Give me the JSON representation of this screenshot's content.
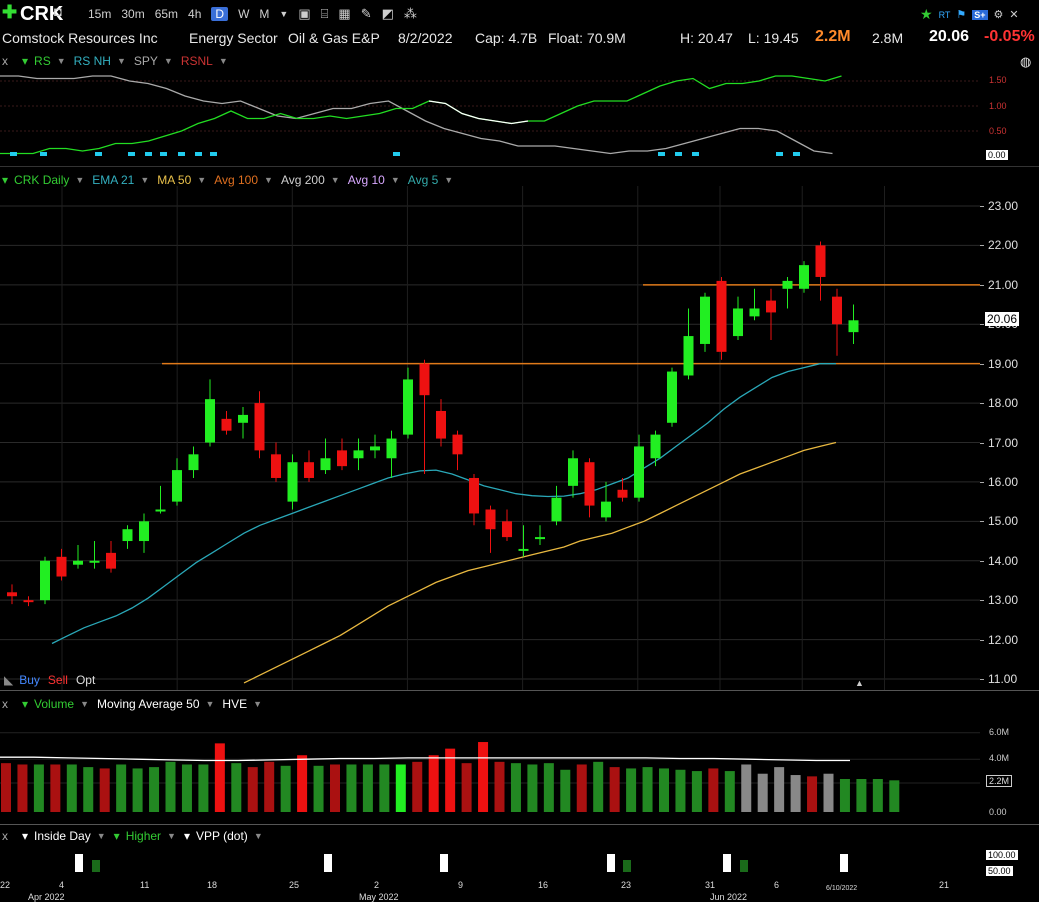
{
  "toolbar": {
    "ticker": "CRK",
    "timeframes": [
      "15m",
      "30m",
      "65m",
      "4h",
      "D",
      "W",
      "M"
    ],
    "active_timeframe": "D",
    "right_label_rt": "RT",
    "right_label_s": "S+"
  },
  "info": {
    "company": "Comstock Resources Inc",
    "sector": "Energy Sector",
    "industry": "Oil & Gas E&P",
    "date": "8/2/2022",
    "cap": "Cap: 4.7B",
    "float": "Float: 70.9M",
    "high": "H: 20.47",
    "low": "L: 19.45",
    "volume": "2.2M",
    "avg_volume": "2.8M",
    "price": "20.06",
    "change": "-0.05%"
  },
  "rs_panel": {
    "close_label": "x",
    "items": [
      "RS",
      "RS NH",
      "SPY",
      "RSNL"
    ],
    "y_ticks": [
      "1.50",
      "1.00",
      "0.50"
    ],
    "value_badge": "0.00"
  },
  "price_panel": {
    "legend": [
      "CRK Daily",
      "EMA 21",
      "MA 50",
      "Avg 100",
      "Avg 200",
      "Avg 10",
      "Avg 5"
    ],
    "legend_colors": [
      "#33cc33",
      "#33b0c0",
      "#e8c04a",
      "#e07020",
      "#cfcfcf",
      "#d8a8ff",
      "#33aaaa"
    ],
    "y_ticks": [
      "23.00",
      "22.00",
      "21.00",
      "20.00",
      "19.00",
      "18.00",
      "17.00",
      "16.00",
      "15.00",
      "14.00",
      "13.00",
      "12.00",
      "11.00"
    ],
    "price_badge": "20.06",
    "buy_label": "Buy",
    "sell_label": "Sell",
    "opt_label": "Opt"
  },
  "volume_panel": {
    "close_label": "x",
    "items": [
      "Volume",
      "Moving Average 50",
      "HVE"
    ],
    "y_ticks": [
      "6.0M",
      "4.0M",
      "2.2M",
      "0.00"
    ],
    "value_badge": "2.2M"
  },
  "inside_panel": {
    "close_label": "x",
    "items": [
      "Inside Day",
      "Higher",
      "VPP (dot)"
    ],
    "badges": [
      "100.00",
      "50.00"
    ]
  },
  "x_axis": {
    "labels": [
      "22",
      "Apr 2022",
      "4",
      "11",
      "18",
      "25",
      "2",
      "May 2022",
      "9",
      "16",
      "23",
      "31",
      "Jun 2022",
      "6",
      "6/10/2022",
      "21"
    ]
  },
  "chart_data": {
    "type": "candlestick",
    "ylim": [
      10.9,
      23.3
    ],
    "horizontal_lines": [
      21.0,
      19.0
    ],
    "candles": [
      {
        "o": 13.2,
        "c": 13.1,
        "h": 13.4,
        "l": 12.9
      },
      {
        "o": 13.0,
        "c": 12.95,
        "h": 13.1,
        "l": 12.85
      },
      {
        "o": 13.0,
        "c": 14.0,
        "h": 14.1,
        "l": 12.9
      },
      {
        "o": 14.1,
        "c": 13.6,
        "h": 14.3,
        "l": 13.5
      },
      {
        "o": 13.9,
        "c": 14.0,
        "h": 14.4,
        "l": 13.8
      },
      {
        "o": 14.0,
        "c": 14.0,
        "h": 14.5,
        "l": 13.8
      },
      {
        "o": 14.2,
        "c": 13.8,
        "h": 14.5,
        "l": 13.7
      },
      {
        "o": 14.5,
        "c": 14.8,
        "h": 14.9,
        "l": 14.3
      },
      {
        "o": 14.5,
        "c": 15.0,
        "h": 15.2,
        "l": 14.2
      },
      {
        "o": 15.3,
        "c": 15.3,
        "h": 15.9,
        "l": 15.2
      },
      {
        "o": 15.5,
        "c": 16.3,
        "h": 16.6,
        "l": 15.4
      },
      {
        "o": 16.3,
        "c": 16.7,
        "h": 16.9,
        "l": 16.1
      },
      {
        "o": 17.0,
        "c": 18.1,
        "h": 18.6,
        "l": 16.9
      },
      {
        "o": 17.6,
        "c": 17.3,
        "h": 17.8,
        "l": 17.2
      },
      {
        "o": 17.5,
        "c": 17.7,
        "h": 17.9,
        "l": 17.1
      },
      {
        "o": 18.0,
        "c": 16.8,
        "h": 18.3,
        "l": 16.6
      },
      {
        "o": 16.7,
        "c": 16.1,
        "h": 17.0,
        "l": 16.0
      },
      {
        "o": 15.5,
        "c": 16.5,
        "h": 16.7,
        "l": 15.3
      },
      {
        "o": 16.5,
        "c": 16.1,
        "h": 16.8,
        "l": 16.0
      },
      {
        "o": 16.3,
        "c": 16.6,
        "h": 17.1,
        "l": 16.2
      },
      {
        "o": 16.8,
        "c": 16.4,
        "h": 17.1,
        "l": 16.3
      },
      {
        "o": 16.6,
        "c": 16.8,
        "h": 17.1,
        "l": 16.3
      },
      {
        "o": 16.8,
        "c": 16.9,
        "h": 17.2,
        "l": 16.6
      },
      {
        "o": 16.6,
        "c": 17.1,
        "h": 17.3,
        "l": 16.1
      },
      {
        "o": 17.2,
        "c": 18.6,
        "h": 18.9,
        "l": 17.1
      },
      {
        "o": 19.0,
        "c": 18.2,
        "h": 19.1,
        "l": 16.2
      },
      {
        "o": 17.8,
        "c": 17.1,
        "h": 18.1,
        "l": 16.9
      },
      {
        "o": 17.2,
        "c": 16.7,
        "h": 17.3,
        "l": 16.3
      },
      {
        "o": 16.1,
        "c": 15.2,
        "h": 16.2,
        "l": 14.9
      },
      {
        "o": 15.3,
        "c": 14.8,
        "h": 15.4,
        "l": 14.2
      },
      {
        "o": 15.0,
        "c": 14.6,
        "h": 15.3,
        "l": 14.5
      },
      {
        "o": 14.3,
        "c": 14.3,
        "h": 14.9,
        "l": 14.1
      },
      {
        "o": 14.6,
        "c": 14.6,
        "h": 14.9,
        "l": 14.4
      },
      {
        "o": 15.0,
        "c": 15.6,
        "h": 15.9,
        "l": 14.9
      },
      {
        "o": 15.9,
        "c": 16.6,
        "h": 16.8,
        "l": 15.6
      },
      {
        "o": 16.5,
        "c": 15.4,
        "h": 16.6,
        "l": 15.1
      },
      {
        "o": 15.1,
        "c": 15.5,
        "h": 16.0,
        "l": 15.0
      },
      {
        "o": 15.8,
        "c": 15.6,
        "h": 16.1,
        "l": 15.5
      },
      {
        "o": 15.6,
        "c": 16.9,
        "h": 17.2,
        "l": 15.5
      },
      {
        "o": 16.6,
        "c": 17.2,
        "h": 17.3,
        "l": 16.4
      },
      {
        "o": 17.5,
        "c": 18.8,
        "h": 18.9,
        "l": 17.4
      },
      {
        "o": 18.7,
        "c": 19.7,
        "h": 20.4,
        "l": 18.6
      },
      {
        "o": 19.5,
        "c": 20.7,
        "h": 20.8,
        "l": 19.3
      },
      {
        "o": 21.1,
        "c": 19.3,
        "h": 21.2,
        "l": 19.1
      },
      {
        "o": 19.7,
        "c": 20.4,
        "h": 20.7,
        "l": 19.6
      },
      {
        "o": 20.2,
        "c": 20.4,
        "h": 20.9,
        "l": 20.1
      },
      {
        "o": 20.6,
        "c": 20.3,
        "h": 20.9,
        "l": 19.6
      },
      {
        "o": 20.9,
        "c": 21.1,
        "h": 21.2,
        "l": 20.4
      },
      {
        "o": 20.9,
        "c": 21.5,
        "h": 21.6,
        "l": 20.8
      },
      {
        "o": 22.0,
        "c": 21.2,
        "h": 22.1,
        "l": 20.6
      },
      {
        "o": 20.7,
        "c": 20.0,
        "h": 20.9,
        "l": 19.2
      },
      {
        "o": 19.8,
        "c": 20.1,
        "h": 20.5,
        "l": 19.5
      }
    ],
    "ema21": [
      11.9,
      12.1,
      12.3,
      12.45,
      12.6,
      12.8,
      13.05,
      13.35,
      13.65,
      13.95,
      14.2,
      14.45,
      14.7,
      14.9,
      15.05,
      15.2,
      15.35,
      15.5,
      15.65,
      15.8,
      15.95,
      16.1,
      16.2,
      16.28,
      16.3,
      16.2,
      16.05,
      15.9,
      15.8,
      15.7,
      15.65,
      15.63,
      15.64,
      15.7,
      15.8,
      15.95,
      16.1,
      16.35,
      16.6,
      16.9,
      17.2,
      17.5,
      17.85,
      18.15,
      18.4,
      18.65,
      18.8,
      18.9,
      19.0,
      19.0
    ],
    "ma50": [
      10.9,
      11.1,
      11.3,
      11.5,
      11.7,
      11.9,
      12.1,
      12.35,
      12.6,
      12.85,
      13.05,
      13.25,
      13.45,
      13.6,
      13.75,
      13.85,
      13.95,
      14.05,
      14.15,
      14.25,
      14.35,
      14.5,
      14.6,
      14.7,
      14.85,
      15.0,
      15.2,
      15.4,
      15.6,
      15.8,
      16.0,
      16.2,
      16.35,
      16.5,
      16.65,
      16.8,
      16.9,
      17.0
    ],
    "volume_millions": [
      3.7,
      3.6,
      3.6,
      3.6,
      3.6,
      3.4,
      3.3,
      3.6,
      3.3,
      3.4,
      3.8,
      3.6,
      3.6,
      5.2,
      3.7,
      3.4,
      3.8,
      3.5,
      4.3,
      3.5,
      3.6,
      3.6,
      3.6,
      3.6,
      3.6,
      3.8,
      4.3,
      4.8,
      3.7,
      5.3,
      3.8,
      3.7,
      3.6,
      3.7,
      3.2,
      3.6,
      3.8,
      3.4,
      3.3,
      3.4,
      3.3,
      3.2,
      3.1,
      3.3,
      3.1,
      3.6,
      2.9,
      3.4,
      2.8,
      2.7,
      2.9,
      2.5,
      2.5,
      2.5,
      2.4
    ],
    "volume_ma": [
      4.15,
      4.15,
      4.1,
      4.05,
      4.0,
      3.95,
      3.9,
      3.9,
      3.95,
      4.0,
      4.05,
      4.05,
      4.1,
      4.1,
      4.1,
      4.1,
      4.1,
      4.1,
      4.1,
      4.1,
      4.05,
      4.05,
      4.0,
      3.95,
      3.9,
      3.9
    ],
    "rs_line": [
      1.6,
      1.6,
      1.55,
      1.55,
      1.55,
      1.6,
      1.6,
      1.5,
      1.45,
      1.35,
      1.2,
      1.1,
      1.05,
      1.1,
      0.95,
      0.8,
      0.75,
      0.85,
      0.95,
      0.95,
      1.05,
      1.1,
      0.9,
      0.7,
      0.55,
      0.45,
      0.35,
      0.3,
      0.2,
      0.2,
      0.2,
      0.15,
      0.1,
      0.05,
      0.1,
      0.1,
      0.15,
      0.25,
      0.35,
      0.45,
      0.55,
      0.55,
      0.5,
      0.3,
      0.1,
      0.05
    ],
    "rs_nh": [
      0.05,
      0.05,
      0.05,
      0.15,
      0.15,
      0.1,
      0.15,
      0.25,
      0.25,
      0.3,
      0.4,
      0.5,
      0.65,
      0.75,
      0.9,
      0.75,
      0.75,
      0.85,
      0.75,
      0.75,
      0.8,
      0.75,
      0.8,
      0.85,
      0.95,
      0.95,
      1.1,
      1.05,
      0.85,
      0.75,
      0.7,
      0.65,
      0.7,
      0.7,
      0.85,
      1.0,
      1.1,
      1.1,
      1.1,
      1.25,
      1.4,
      1.5,
      1.55,
      1.35,
      1.45,
      1.45,
      1.5,
      1.6,
      1.6,
      1.55,
      1.5,
      1.6
    ]
  }
}
